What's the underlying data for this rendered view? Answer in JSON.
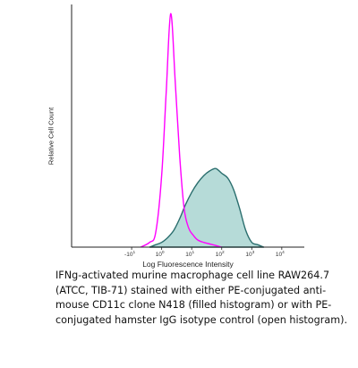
{
  "chart_data": {
    "type": "area",
    "xlabel": "Log Fluorescence Intensity",
    "ylabel": "Relative Cell Count",
    "x_scale": "log",
    "xlim": [
      -3,
      4.75
    ],
    "ylim": [
      0,
      1
    ],
    "x_ticks": [
      {
        "value": -1,
        "base": "-10",
        "exp": "1"
      },
      {
        "value": 0,
        "base": "10",
        "exp": "0"
      },
      {
        "value": 1,
        "base": "10",
        "exp": "1"
      },
      {
        "value": 2,
        "base": "10",
        "exp": "2"
      },
      {
        "value": 3,
        "base": "10",
        "exp": "3"
      },
      {
        "value": 4,
        "base": "10",
        "exp": "4"
      }
    ],
    "series": [
      {
        "style": "filled",
        "color": "#2a6e6e",
        "fill": "#a9d5d1",
        "x": [
          -0.4,
          -0.2,
          0.0,
          0.2,
          0.4,
          0.6,
          0.8,
          1.0,
          1.2,
          1.4,
          1.6,
          1.8,
          2.0,
          2.2,
          2.4,
          2.6,
          2.8,
          3.0,
          3.2,
          3.4
        ],
        "values": [
          0.0,
          0.01,
          0.02,
          0.04,
          0.07,
          0.12,
          0.18,
          0.23,
          0.27,
          0.3,
          0.32,
          0.33,
          0.31,
          0.29,
          0.24,
          0.16,
          0.07,
          0.02,
          0.01,
          0.0
        ]
      },
      {
        "style": "open",
        "color": "#ff00ff",
        "x": [
          -0.7,
          -0.4,
          -0.2,
          0.0,
          0.15,
          0.3,
          0.45,
          0.6,
          0.75,
          0.9,
          1.05,
          1.2,
          1.4,
          1.7,
          2.0
        ],
        "values": [
          0.0,
          0.02,
          0.06,
          0.3,
          0.65,
          0.98,
          0.7,
          0.38,
          0.16,
          0.08,
          0.05,
          0.03,
          0.02,
          0.01,
          0.0
        ]
      }
    ]
  },
  "caption": "IFNg-activated murine macrophage cell line RAW264.7 (ATCC, TIB-71) stained with either PE-conjugated anti-mouse CD11c clone N418 (filled histogram) or with PE-conjugated hamster IgG isotype control (open histogram)."
}
